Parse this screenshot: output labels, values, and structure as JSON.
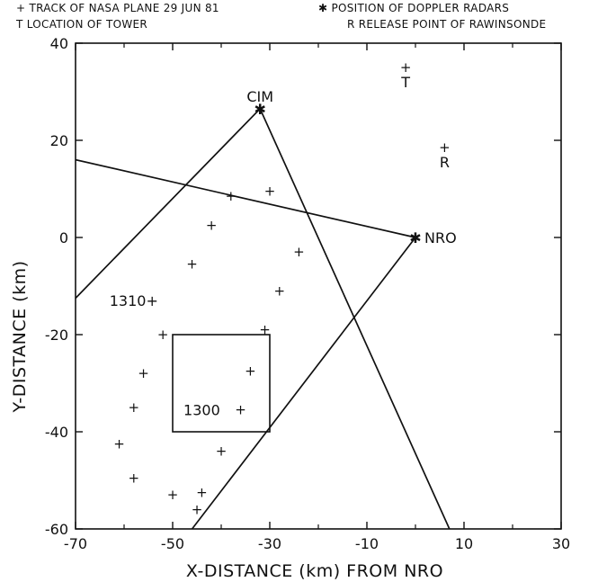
{
  "legend": {
    "line1_left": "+ TRACK OF NASA PLANE 29 JUN 81",
    "line1_right": "✱ POSITION OF DOPPLER RADARS",
    "line2_left": "T LOCATION OF TOWER",
    "line2_right": "R RELEASE POINT OF RAWINSONDE"
  },
  "chart_data": {
    "type": "scatter",
    "title": "",
    "xlabel": "X-DISTANCE (km) FROM NRO",
    "ylabel": "Y-DISTANCE (km)",
    "xlim": [
      -70,
      30
    ],
    "ylim": [
      -60,
      40
    ],
    "x_ticks": [
      -70,
      -50,
      -30,
      -10,
      10,
      30
    ],
    "x_tick_labels": [
      "-70",
      "-50",
      "-30",
      "-10",
      "10",
      "30"
    ],
    "y_ticks": [
      -60,
      -40,
      -20,
      0,
      20,
      40
    ],
    "y_tick_labels": [
      "-60",
      "-40",
      "-20",
      "0",
      "20",
      "40"
    ],
    "grid": false,
    "legend_position": "top",
    "plane_track": [
      {
        "x": -38,
        "y": 8.5
      },
      {
        "x": -30,
        "y": 9.5
      },
      {
        "x": -42,
        "y": 2.5
      },
      {
        "x": -24,
        "y": -3
      },
      {
        "x": -46,
        "y": -5.5
      },
      {
        "x": -28,
        "y": -11
      },
      {
        "x": -52,
        "y": -20
      },
      {
        "x": -31,
        "y": -19
      },
      {
        "x": -56,
        "y": -28
      },
      {
        "x": -34,
        "y": -27.5
      },
      {
        "x": -58,
        "y": -35
      },
      {
        "x": -36,
        "y": -35.5
      },
      {
        "x": -61,
        "y": -42.5
      },
      {
        "x": -40,
        "y": -44
      },
      {
        "x": -58,
        "y": -49.5
      },
      {
        "x": -50,
        "y": -53
      },
      {
        "x": -44,
        "y": -52.5
      },
      {
        "x": -45,
        "y": -56
      }
    ],
    "time_labels": [
      {
        "text": "1310+",
        "x": -58,
        "y": -13
      },
      {
        "text": "1300",
        "x": -44,
        "y": -35.5
      }
    ],
    "radars": [
      {
        "name": "CIM",
        "x": -32,
        "y": 26.5
      },
      {
        "name": "NRO",
        "x": 0,
        "y": 0
      }
    ],
    "tower": {
      "label": "T",
      "x": -2,
      "y": 35
    },
    "rawinsonde": {
      "label": "R",
      "x": 6,
      "y": 18.5
    },
    "lines": [
      {
        "from": [
          -70,
          16
        ],
        "to": [
          0,
          0
        ]
      },
      {
        "from": [
          -70,
          -12.5
        ],
        "to": [
          -32,
          26.5
        ]
      },
      {
        "from": [
          -32,
          26.5
        ],
        "to": [
          7,
          -60
        ]
      },
      {
        "from": [
          -46,
          -60
        ],
        "to": [
          0,
          0
        ]
      }
    ],
    "box": {
      "x1": -50,
      "x2": -30,
      "y1": -40,
      "y2": -20
    }
  }
}
